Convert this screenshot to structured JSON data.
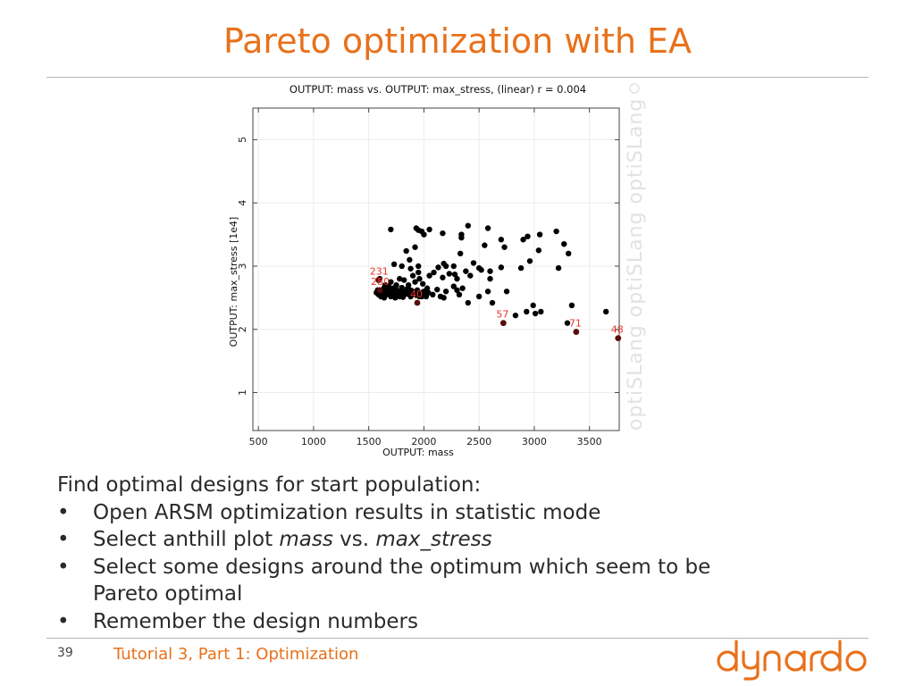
{
  "slide": {
    "title": "Pareto optimization with EA",
    "page_number": "39",
    "footer": "Tutorial 3, Part 1: Optimization",
    "brand_color": "#e8711b",
    "logo_text": "dynardo"
  },
  "body": {
    "intro": "Find optimal designs for start population:",
    "bullets": [
      {
        "text": "Open ARSM optimization results in statistic mode"
      },
      {
        "pre": "Select anthill plot ",
        "em1": "mass",
        "mid": " vs. ",
        "em2": "max_stress"
      },
      {
        "text": "Select some designs around the optimum which seem to be Pareto optimal"
      },
      {
        "text": "Remember the design numbers"
      }
    ]
  },
  "chart_data": {
    "type": "scatter",
    "title": "OUTPUT: mass vs. OUTPUT: max_stress, (linear) r = 0.004",
    "xlabel": "OUTPUT: mass",
    "ylabel": "OUTPUT: max_stress [1e4]",
    "xlim": [
      450,
      3770
    ],
    "ylim": [
      0.4,
      5.5
    ],
    "xticks": [
      500,
      1000,
      1500,
      2000,
      2500,
      3000,
      3500
    ],
    "yticks": [
      1,
      2,
      3,
      4,
      5
    ],
    "grid": true,
    "watermark": "optiSLang",
    "point_color": "#000000",
    "highlight_color": "#e8362e",
    "points": [
      [
        1700,
        3.58
      ],
      [
        1930,
        3.6
      ],
      [
        1950,
        3.57
      ],
      [
        1980,
        3.55
      ],
      [
        2050,
        3.58
      ],
      [
        2000,
        3.5
      ],
      [
        2170,
        3.52
      ],
      [
        2400,
        3.64
      ],
      [
        2580,
        3.6
      ],
      [
        2340,
        3.5
      ],
      [
        2340,
        3.45
      ],
      [
        2700,
        3.42
      ],
      [
        2730,
        3.3
      ],
      [
        2550,
        3.33
      ],
      [
        2900,
        3.42
      ],
      [
        2940,
        3.47
      ],
      [
        3050,
        3.5
      ],
      [
        3200,
        3.55
      ],
      [
        3270,
        3.35
      ],
      [
        2960,
        3.08
      ],
      [
        3040,
        3.25
      ],
      [
        3310,
        3.2
      ],
      [
        3220,
        2.97
      ],
      [
        2880,
        2.97
      ],
      [
        2700,
        2.98
      ],
      [
        2600,
        2.92
      ],
      [
        2500,
        2.97
      ],
      [
        2450,
        3.05
      ],
      [
        2330,
        3.2
      ],
      [
        2270,
        3.0
      ],
      [
        2180,
        3.04
      ],
      [
        2200,
        3.0
      ],
      [
        1920,
        3.3
      ],
      [
        1840,
        3.24
      ],
      [
        1950,
        3.0
      ],
      [
        1870,
        3.1
      ],
      [
        1730,
        3.03
      ],
      [
        1800,
        3.0
      ],
      [
        1880,
        2.96
      ],
      [
        1950,
        2.9
      ],
      [
        1900,
        2.85
      ],
      [
        2050,
        2.85
      ],
      [
        2090,
        2.9
      ],
      [
        2130,
        2.98
      ],
      [
        2170,
        2.82
      ],
      [
        2230,
        2.88
      ],
      [
        2280,
        2.87
      ],
      [
        2300,
        2.8
      ],
      [
        2380,
        2.92
      ],
      [
        2420,
        2.85
      ],
      [
        2520,
        2.94
      ],
      [
        2600,
        2.8
      ],
      [
        2750,
        2.6
      ],
      [
        2580,
        2.6
      ],
      [
        2500,
        2.52
      ],
      [
        2620,
        2.42
      ],
      [
        2400,
        2.42
      ],
      [
        2180,
        2.5
      ],
      [
        2320,
        2.55
      ],
      [
        2270,
        2.68
      ],
      [
        2300,
        2.62
      ],
      [
        2350,
        2.65
      ],
      [
        2200,
        2.6
      ],
      [
        2120,
        2.63
      ],
      [
        2150,
        2.52
      ],
      [
        2080,
        2.55
      ],
      [
        1600,
        2.8
      ],
      [
        1650,
        2.7
      ],
      [
        1700,
        2.75
      ],
      [
        1750,
        2.7
      ],
      [
        1780,
        2.8
      ],
      [
        1820,
        2.78
      ],
      [
        1860,
        2.7
      ],
      [
        1880,
        2.62
      ],
      [
        1920,
        2.75
      ],
      [
        1960,
        2.8
      ],
      [
        1990,
        2.72
      ],
      [
        2030,
        2.65
      ],
      [
        2010,
        2.55
      ],
      [
        1960,
        2.58
      ],
      [
        1980,
        2.52
      ],
      [
        1880,
        2.52
      ],
      [
        1820,
        2.55
      ],
      [
        1780,
        2.52
      ],
      [
        1740,
        2.5
      ],
      [
        1700,
        2.52
      ],
      [
        1660,
        2.55
      ],
      [
        1640,
        2.5
      ],
      [
        1610,
        2.52
      ],
      [
        1590,
        2.55
      ],
      [
        1580,
        2.62
      ],
      [
        1630,
        2.58
      ],
      [
        1660,
        2.62
      ],
      [
        1700,
        2.6
      ],
      [
        1720,
        2.65
      ],
      [
        1760,
        2.6
      ],
      [
        1800,
        2.62
      ],
      [
        1840,
        2.6
      ],
      [
        1900,
        2.6
      ],
      [
        1940,
        2.62
      ],
      [
        2000,
        2.6
      ],
      [
        2040,
        2.58
      ],
      [
        1680,
        2.58
      ],
      [
        1740,
        2.56
      ],
      [
        1790,
        2.58
      ],
      [
        1850,
        2.56
      ],
      [
        1910,
        2.56
      ],
      [
        1960,
        2.52
      ],
      [
        1620,
        2.54
      ],
      [
        1570,
        2.58
      ],
      [
        1600,
        2.62
      ],
      [
        1640,
        2.66
      ],
      [
        1680,
        2.68
      ],
      [
        1720,
        2.57
      ],
      [
        1760,
        2.53
      ],
      [
        1810,
        2.51
      ],
      [
        1860,
        2.58
      ],
      [
        1930,
        2.54
      ],
      [
        1980,
        2.58
      ],
      [
        2020,
        2.52
      ],
      [
        1700,
        2.54
      ],
      [
        1750,
        2.63
      ],
      [
        1800,
        2.66
      ],
      [
        1850,
        2.64
      ],
      [
        2830,
        2.22
      ],
      [
        2930,
        2.28
      ],
      [
        3010,
        2.25
      ],
      [
        3060,
        2.28
      ],
      [
        2990,
        2.38
      ],
      [
        3340,
        2.38
      ],
      [
        3650,
        2.28
      ]
    ],
    "labeled_points": [
      {
        "label": "231",
        "x": 1590,
        "y": 2.78
      },
      {
        "label": "280",
        "x": 1600,
        "y": 2.62
      },
      {
        "label": "40",
        "x": 1940,
        "y": 2.42
      },
      {
        "label": "57",
        "x": 2720,
        "y": 2.1
      },
      {
        "label": "71",
        "x": 3380,
        "y": 1.96
      },
      {
        "label": "48",
        "x": 3760,
        "y": 1.86
      }
    ],
    "extra_points": [
      {
        "x": 3300,
        "y": 2.1
      }
    ]
  }
}
